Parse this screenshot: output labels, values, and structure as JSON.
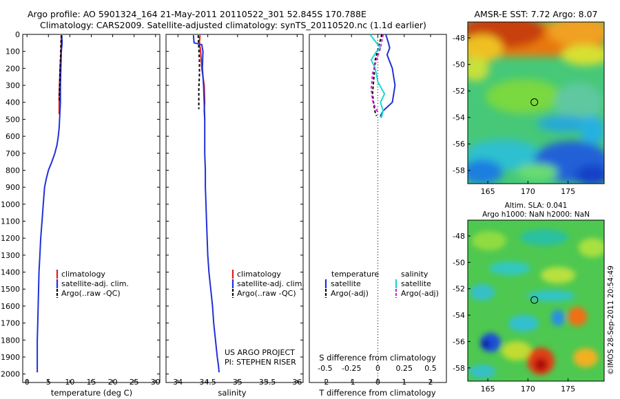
{
  "title": {
    "line1": "Argo profile: AO 5901324_164 21-May-2011 20110522_301 52.845S 170.788E",
    "line2": "Climatology: CARS2009. Satellite-adjusted climatology: synTS_20110520.nc (1.1d earlier)"
  },
  "colors": {
    "red": "#e41a1c",
    "blue": "#1f2fd8",
    "black": "#000000",
    "cyan": "#19d6d6",
    "magenta": "#d41ad4"
  },
  "chart_data": [
    {
      "type": "line",
      "name": "temperature-profile",
      "xlabel": "temperature (deg C)",
      "ylabel": "",
      "xlim": [
        -1,
        31
      ],
      "ylim": [
        2050,
        0
      ],
      "xticks": [
        "0",
        "5",
        "10",
        "15",
        "20",
        "25",
        "30"
      ],
      "yticks": [
        "0",
        "100",
        "200",
        "300",
        "400",
        "500",
        "600",
        "700",
        "800",
        "900",
        "1000",
        "1100",
        "1200",
        "1300",
        "1400",
        "1500",
        "1600",
        "1700",
        "1800",
        "1900",
        "2000"
      ],
      "legend": [
        "climatology",
        "satellite-adj. clim.",
        "Argo(..raw -QC)"
      ],
      "series": [
        {
          "name": "climatology",
          "color": "red",
          "dash": false,
          "x": [
            8.0,
            8.0,
            7.9,
            7.7,
            7.6,
            7.5,
            7.5,
            7.5
          ],
          "y": [
            5,
            60,
            120,
            200,
            280,
            350,
            420,
            470
          ]
        },
        {
          "name": "satellite-adj. clim.",
          "color": "blue",
          "dash": false,
          "x": [
            8.1,
            8.2,
            8.0,
            7.9,
            7.8,
            7.8,
            7.7,
            7.6,
            7.5,
            7.3,
            7.0,
            6.5,
            5.8,
            5.0,
            4.5,
            4.1,
            3.8,
            3.5,
            3.2,
            3.0,
            2.8,
            2.7,
            2.6,
            2.5,
            2.4,
            2.4
          ],
          "y": [
            5,
            50,
            100,
            200,
            300,
            400,
            450,
            500,
            550,
            600,
            650,
            700,
            750,
            800,
            850,
            900,
            1000,
            1100,
            1200,
            1300,
            1400,
            1500,
            1600,
            1700,
            1800,
            1990
          ]
        },
        {
          "name": "Argo(..raw -QC)",
          "color": "black",
          "dash": true,
          "x": [
            8.0,
            7.9,
            7.8,
            7.7,
            7.6,
            7.5
          ],
          "y": [
            5,
            80,
            160,
            240,
            320,
            400
          ]
        }
      ]
    },
    {
      "type": "line",
      "name": "salinity-profile",
      "xlabel": "salinity",
      "ylabel": "",
      "xlim": [
        33.8,
        36.1
      ],
      "ylim": [
        2050,
        0
      ],
      "xticks": [
        "34",
        "34.5",
        "35",
        "35.5",
        "36"
      ],
      "legend": [
        "climatology",
        "satellite-adj. clim.",
        "Argo(..raw -QC)"
      ],
      "series": [
        {
          "name": "climatology",
          "color": "red",
          "dash": false,
          "x": [
            34.37,
            34.36,
            34.38,
            34.4,
            34.44,
            34.45,
            34.44,
            34.45
          ],
          "y": [
            5,
            50,
            100,
            200,
            300,
            400,
            450,
            500
          ]
        },
        {
          "name": "satellite-adj. clim.",
          "color": "blue",
          "dash": false,
          "x": [
            34.26,
            34.27,
            34.4,
            34.42,
            34.41,
            34.43,
            34.44,
            34.45,
            34.45,
            34.45,
            34.46,
            34.46,
            34.47,
            34.48,
            34.49,
            34.5,
            34.52,
            34.55,
            34.58,
            34.6,
            34.63,
            34.66,
            34.68,
            34.69
          ],
          "y": [
            5,
            50,
            60,
            100,
            200,
            300,
            400,
            500,
            600,
            700,
            800,
            900,
            1000,
            1100,
            1200,
            1300,
            1400,
            1500,
            1600,
            1700,
            1800,
            1900,
            1950,
            1990
          ]
        },
        {
          "name": "Argo(..raw -QC)",
          "color": "black",
          "dash": true,
          "x": [
            34.34,
            34.35,
            34.36,
            34.36,
            34.35,
            34.35
          ],
          "y": [
            5,
            80,
            160,
            240,
            320,
            440
          ]
        }
      ]
    },
    {
      "type": "line",
      "name": "difference-profile",
      "xlabel": "T difference from climatology",
      "xlabel_top": "S difference from climatology",
      "xlim": [
        -2.6,
        2.6
      ],
      "ylim": [
        2050,
        0
      ],
      "xticks": [
        "-2",
        "-1",
        "0",
        "1",
        "2"
      ],
      "xticks_top": [
        "-0.5",
        "-0.25",
        "0",
        "0.25",
        "0.5"
      ],
      "legend_headers": [
        "temperature",
        "salinity"
      ],
      "legend_left": [
        "satellite",
        "Argo(-adj)"
      ],
      "legend_right": [
        "satellite",
        "Argo(-adj)"
      ],
      "series": [
        {
          "name": "temperature satellite",
          "color": "blue",
          "dash": false,
          "x": [
            0.3,
            0.4,
            0.45,
            0.35,
            0.55,
            0.65,
            0.6,
            0.55,
            0.2,
            0.1,
            0.15
          ],
          "y": [
            0,
            50,
            80,
            120,
            200,
            300,
            350,
            400,
            450,
            480,
            490
          ]
        },
        {
          "name": "temperature Argo(-adj)",
          "color": "black",
          "dash": true,
          "x": [
            0.15,
            0.05,
            -0.1,
            -0.15,
            -0.2,
            -0.15,
            -0.1,
            -0.05
          ],
          "y": [
            0,
            60,
            150,
            250,
            350,
            420,
            460,
            480
          ]
        },
        {
          "name": "salinity satellite",
          "color": "cyan",
          "dash": false,
          "x": [
            -0.3,
            0.1,
            -0.05,
            -0.25,
            -0.1,
            0.0,
            0.25,
            0.1,
            0.2,
            0.15,
            0.1
          ],
          "y": [
            0,
            80,
            100,
            150,
            200,
            280,
            350,
            400,
            450,
            480,
            490
          ]
        },
        {
          "name": "salinity Argo(-adj)",
          "color": "magenta",
          "dash": true,
          "x": [
            0.2,
            0.1,
            -0.05,
            -0.2,
            -0.25,
            -0.2,
            -0.1,
            0.0
          ],
          "y": [
            0,
            80,
            150,
            230,
            320,
            390,
            430,
            460
          ]
        }
      ]
    },
    {
      "type": "heatmap",
      "name": "sst-map",
      "title": "AMSR-E SST: 7.72  Argo: 8.07",
      "xlim": [
        162.5,
        179.5
      ],
      "ylim": [
        -59,
        -46.8
      ],
      "xticks": [
        "165",
        "170",
        "175"
      ],
      "yticks": [
        "-48",
        "-50",
        "-52",
        "-54",
        "-56",
        "-58"
      ],
      "argo_position": {
        "lon": 170.8,
        "lat": -52.85
      }
    },
    {
      "type": "heatmap",
      "name": "sla-map",
      "title_line1": "Altim. SLA: 0.041",
      "title_line2": "Argo h1000: NaN h2000: NaN",
      "xlim": [
        162.5,
        179.5
      ],
      "ylim": [
        -59,
        -46.8
      ],
      "xticks": [
        "165",
        "170",
        "175"
      ],
      "yticks": [
        "-48",
        "-50",
        "-52",
        "-54",
        "-56",
        "-58"
      ],
      "argo_position": {
        "lon": 170.8,
        "lat": -52.85
      }
    }
  ],
  "annotations": {
    "project_line1": "US ARGO PROJECT",
    "project_line2": "PI: STEPHEN RISER",
    "credit": "©IMOS 28-Sep-2011 20:54:49"
  }
}
